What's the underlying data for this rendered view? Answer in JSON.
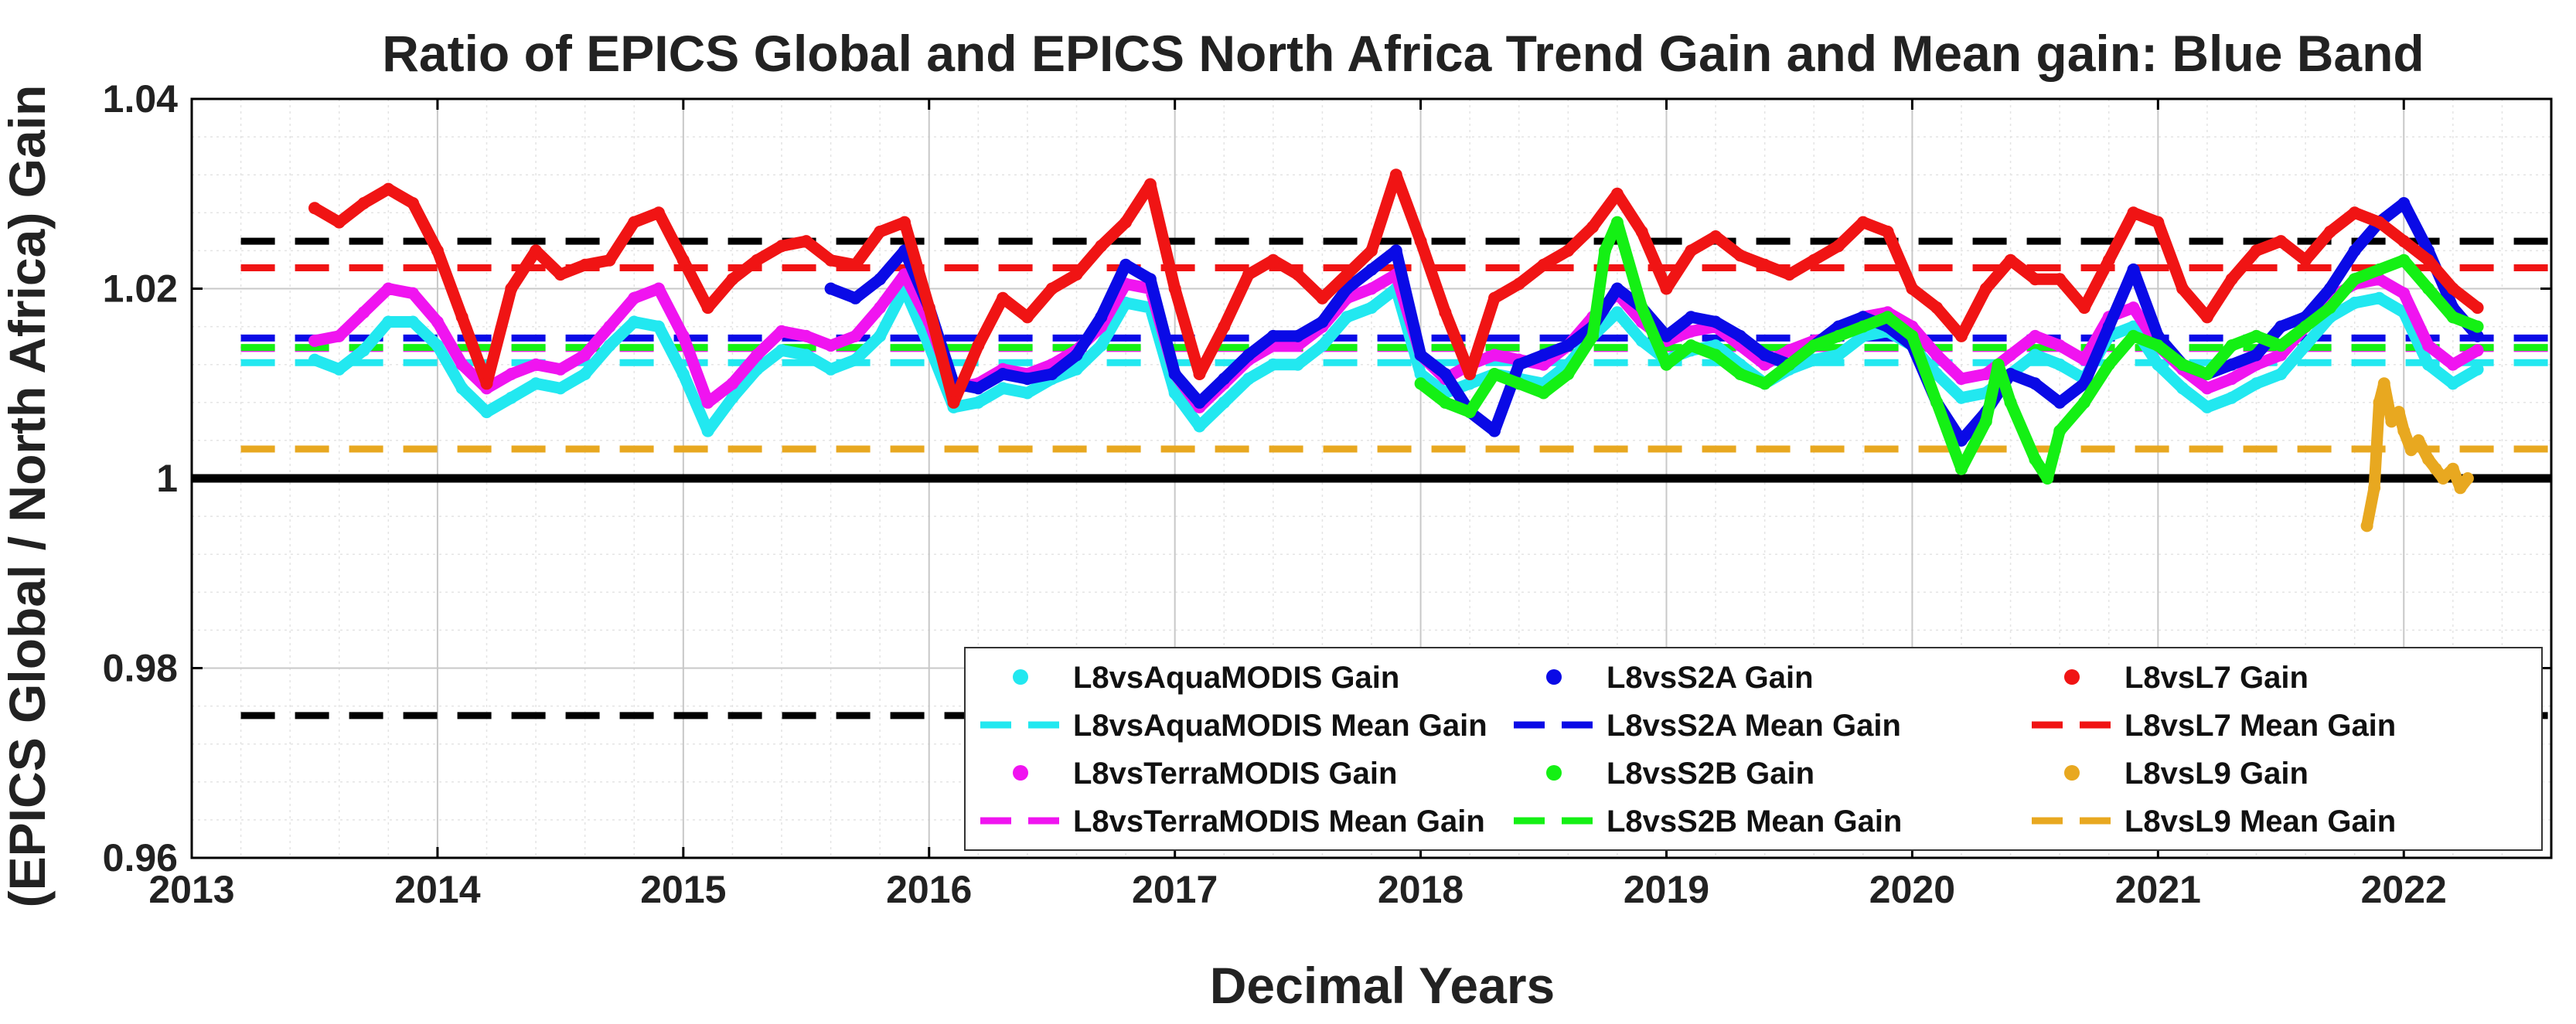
{
  "chart_data": {
    "type": "scatter",
    "title": "Ratio of EPICS Global and EPICS North Africa Trend Gain and Mean gain: Blue Band",
    "xlabel": "Decimal Years",
    "ylabel": "(EPICS Global / North Africa) Gain",
    "xlim": [
      2013,
      2022.6
    ],
    "ylim": [
      0.96,
      1.04
    ],
    "xticks": [
      2013,
      2014,
      2015,
      2016,
      2017,
      2018,
      2019,
      2020,
      2021,
      2022
    ],
    "xtick_labels": [
      "2013",
      "2014",
      "2015",
      "2016",
      "2017",
      "2018",
      "2019",
      "2020",
      "2021",
      "2022"
    ],
    "yticks": [
      0.96,
      0.98,
      1.0,
      1.02,
      1.04
    ],
    "ytick_labels": [
      "0.96",
      "0.98",
      "1",
      "1.02",
      "1.04"
    ],
    "grid": true,
    "minor_grid": true,
    "legend_position": "bottom-right",
    "reference_lines": [
      {
        "name": "unity",
        "y": 1.0,
        "color": "#000000",
        "style": "solid",
        "x_range": [
          2013,
          2022.6
        ]
      },
      {
        "name": "upper bound",
        "y": 1.025,
        "color": "#000000",
        "style": "dashed",
        "x_range": [
          2013.2,
          2022.6
        ]
      },
      {
        "name": "lower bound",
        "y": 0.975,
        "color": "#000000",
        "style": "dashed",
        "x_range": [
          2013.2,
          2022.6
        ]
      }
    ],
    "series": [
      {
        "name": "L8vsAquaMODIS Gain",
        "mean_name": "L8vsAquaMODIS Mean Gain",
        "color": "#22e8f0",
        "mean": 1.0122,
        "mean_range": [
          2013.2,
          2022.6
        ],
        "x": [
          2013.5,
          2013.6,
          2013.7,
          2013.8,
          2013.9,
          2014.0,
          2014.1,
          2014.2,
          2014.3,
          2014.4,
          2014.5,
          2014.6,
          2014.7,
          2014.8,
          2014.9,
          2015.0,
          2015.1,
          2015.2,
          2015.3,
          2015.4,
          2015.5,
          2015.6,
          2015.7,
          2015.8,
          2015.9,
          2016.0,
          2016.1,
          2016.2,
          2016.3,
          2016.4,
          2016.5,
          2016.6,
          2016.7,
          2016.8,
          2016.9,
          2017.0,
          2017.1,
          2017.2,
          2017.3,
          2017.4,
          2017.5,
          2017.6,
          2017.7,
          2017.8,
          2017.9,
          2018.0,
          2018.1,
          2018.2,
          2018.3,
          2018.4,
          2018.5,
          2018.6,
          2018.7,
          2018.8,
          2018.9,
          2019.0,
          2019.1,
          2019.2,
          2019.3,
          2019.4,
          2019.5,
          2019.6,
          2019.7,
          2019.8,
          2019.9,
          2020.0,
          2020.1,
          2020.2,
          2020.3,
          2020.4,
          2020.5,
          2020.6,
          2020.7,
          2020.8,
          2020.9,
          2021.0,
          2021.1,
          2021.2,
          2021.3,
          2021.4,
          2021.5,
          2021.6,
          2021.7,
          2021.8,
          2021.9,
          2022.0,
          2022.1,
          2022.2,
          2022.3
        ],
        "values": [
          1.0125,
          1.0115,
          1.0135,
          1.0165,
          1.0165,
          1.014,
          1.0095,
          1.007,
          1.0085,
          1.01,
          1.0095,
          1.011,
          1.014,
          1.0165,
          1.016,
          1.011,
          1.005,
          1.0085,
          1.0115,
          1.0135,
          1.013,
          1.0115,
          1.0125,
          1.015,
          1.02,
          1.014,
          1.0075,
          1.008,
          1.0095,
          1.009,
          1.0105,
          1.0115,
          1.014,
          1.0185,
          1.018,
          1.009,
          1.0055,
          1.008,
          1.0105,
          1.012,
          1.012,
          1.014,
          1.017,
          1.018,
          1.02,
          1.011,
          1.009,
          1.01,
          1.011,
          1.0105,
          1.01,
          1.012,
          1.015,
          1.0175,
          1.0145,
          1.0125,
          1.0135,
          1.014,
          1.012,
          1.01,
          1.0115,
          1.0125,
          1.013,
          1.015,
          1.0155,
          1.014,
          1.011,
          1.0085,
          1.009,
          1.011,
          1.013,
          1.012,
          1.0105,
          1.015,
          1.016,
          1.012,
          1.0095,
          1.0075,
          1.0085,
          1.01,
          1.011,
          1.014,
          1.017,
          1.0185,
          1.019,
          1.0175,
          1.012,
          1.01,
          1.0115
        ]
      },
      {
        "name": "L8vsS2A Gain",
        "mean_name": "L8vsS2A Mean Gain",
        "color": "#0a0ae6",
        "mean": 1.0148,
        "mean_range": [
          2013.2,
          2022.6
        ],
        "x": [
          2015.6,
          2015.7,
          2015.8,
          2015.9,
          2016.0,
          2016.1,
          2016.2,
          2016.3,
          2016.4,
          2016.5,
          2016.6,
          2016.7,
          2016.8,
          2016.9,
          2017.0,
          2017.1,
          2017.2,
          2017.3,
          2017.4,
          2017.5,
          2017.6,
          2017.7,
          2017.8,
          2017.9,
          2018.0,
          2018.1,
          2018.2,
          2018.3,
          2018.4,
          2018.5,
          2018.6,
          2018.7,
          2018.8,
          2018.9,
          2019.0,
          2019.1,
          2019.2,
          2019.3,
          2019.4,
          2019.5,
          2019.6,
          2019.7,
          2019.8,
          2019.9,
          2020.0,
          2020.1,
          2020.2,
          2020.3,
          2020.4,
          2020.5,
          2020.6,
          2020.7,
          2020.8,
          2020.9,
          2021.0,
          2021.1,
          2021.2,
          2021.3,
          2021.4,
          2021.5,
          2021.6,
          2021.7,
          2021.8,
          2021.9,
          2022.0,
          2022.1,
          2022.2,
          2022.3
        ],
        "values": [
          1.02,
          1.019,
          1.021,
          1.024,
          1.018,
          1.01,
          1.0095,
          1.011,
          1.0105,
          1.011,
          1.013,
          1.017,
          1.0225,
          1.021,
          1.011,
          1.008,
          1.0105,
          1.013,
          1.015,
          1.015,
          1.0165,
          1.02,
          1.022,
          1.024,
          1.013,
          1.011,
          1.007,
          1.005,
          1.012,
          1.013,
          1.014,
          1.016,
          1.02,
          1.018,
          1.015,
          1.017,
          1.0165,
          1.015,
          1.013,
          1.012,
          1.014,
          1.016,
          1.017,
          1.016,
          1.014,
          1.008,
          1.004,
          1.007,
          1.011,
          1.01,
          1.008,
          1.01,
          1.016,
          1.022,
          1.015,
          1.012,
          1.011,
          1.012,
          1.013,
          1.016,
          1.017,
          1.02,
          1.024,
          1.027,
          1.029,
          1.024,
          1.018,
          1.015
        ]
      },
      {
        "name": "L8vsL7 Gain",
        "mean_name": "L8vsL7 Mean Gain",
        "color": "#f01414",
        "mean": 1.0222,
        "mean_range": [
          2013.2,
          2022.6
        ],
        "x": [
          2013.5,
          2013.6,
          2013.7,
          2013.8,
          2013.9,
          2014.0,
          2014.1,
          2014.2,
          2014.3,
          2014.4,
          2014.5,
          2014.6,
          2014.7,
          2014.8,
          2014.9,
          2015.0,
          2015.1,
          2015.2,
          2015.3,
          2015.4,
          2015.5,
          2015.6,
          2015.7,
          2015.8,
          2015.9,
          2016.0,
          2016.1,
          2016.2,
          2016.3,
          2016.4,
          2016.5,
          2016.6,
          2016.7,
          2016.8,
          2016.9,
          2017.0,
          2017.1,
          2017.2,
          2017.3,
          2017.4,
          2017.5,
          2017.6,
          2017.7,
          2017.8,
          2017.9,
          2018.0,
          2018.1,
          2018.2,
          2018.3,
          2018.4,
          2018.5,
          2018.6,
          2018.7,
          2018.8,
          2018.9,
          2019.0,
          2019.1,
          2019.2,
          2019.3,
          2019.4,
          2019.5,
          2019.6,
          2019.7,
          2019.8,
          2019.9,
          2020.0,
          2020.1,
          2020.2,
          2020.3,
          2020.4,
          2020.5,
          2020.6,
          2020.7,
          2020.8,
          2020.9,
          2021.0,
          2021.1,
          2021.2,
          2021.3,
          2021.4,
          2021.5,
          2021.6,
          2021.7,
          2021.8,
          2021.9,
          2022.0,
          2022.1,
          2022.2,
          2022.3
        ],
        "values": [
          1.0285,
          1.027,
          1.029,
          1.0305,
          1.029,
          1.024,
          1.017,
          1.01,
          1.02,
          1.024,
          1.0215,
          1.0225,
          1.023,
          1.027,
          1.028,
          1.023,
          1.018,
          1.021,
          1.023,
          1.0245,
          1.025,
          1.023,
          1.0225,
          1.026,
          1.027,
          1.018,
          1.008,
          1.014,
          1.019,
          1.017,
          1.02,
          1.0215,
          1.0245,
          1.027,
          1.031,
          1.02,
          1.011,
          1.016,
          1.0215,
          1.023,
          1.0215,
          1.019,
          1.0215,
          1.024,
          1.032,
          1.025,
          1.0175,
          1.011,
          1.019,
          1.0205,
          1.0225,
          1.024,
          1.0265,
          1.03,
          1.026,
          1.02,
          1.024,
          1.0255,
          1.0235,
          1.0225,
          1.0215,
          1.023,
          1.0245,
          1.027,
          1.026,
          1.02,
          1.018,
          1.015,
          1.02,
          1.023,
          1.021,
          1.021,
          1.018,
          1.023,
          1.028,
          1.027,
          1.02,
          1.017,
          1.021,
          1.024,
          1.025,
          1.023,
          1.026,
          1.028,
          1.027,
          1.025,
          1.023,
          1.02,
          1.018
        ]
      },
      {
        "name": "L8vsTerraMODIS Gain",
        "mean_name": "L8vsTerraMODIS Mean Gain",
        "color": "#f014f0",
        "mean": 1.0137,
        "mean_range": [
          2013.2,
          2022.6
        ],
        "x": [
          2013.5,
          2013.6,
          2013.7,
          2013.8,
          2013.9,
          2014.0,
          2014.1,
          2014.2,
          2014.3,
          2014.4,
          2014.5,
          2014.6,
          2014.7,
          2014.8,
          2014.9,
          2015.0,
          2015.1,
          2015.2,
          2015.3,
          2015.4,
          2015.5,
          2015.6,
          2015.7,
          2015.8,
          2015.9,
          2016.0,
          2016.1,
          2016.2,
          2016.3,
          2016.4,
          2016.5,
          2016.6,
          2016.7,
          2016.8,
          2016.9,
          2017.0,
          2017.1,
          2017.2,
          2017.3,
          2017.4,
          2017.5,
          2017.6,
          2017.7,
          2017.8,
          2017.9,
          2018.0,
          2018.1,
          2018.2,
          2018.3,
          2018.4,
          2018.5,
          2018.6,
          2018.7,
          2018.8,
          2018.9,
          2019.0,
          2019.1,
          2019.2,
          2019.3,
          2019.4,
          2019.5,
          2019.6,
          2019.7,
          2019.8,
          2019.9,
          2020.0,
          2020.1,
          2020.2,
          2020.3,
          2020.4,
          2020.5,
          2020.6,
          2020.7,
          2020.8,
          2020.9,
          2021.0,
          2021.1,
          2021.2,
          2021.3,
          2021.4,
          2021.5,
          2021.6,
          2021.7,
          2021.8,
          2021.9,
          2022.0,
          2022.1,
          2022.2,
          2022.3
        ],
        "values": [
          1.0145,
          1.015,
          1.0175,
          1.02,
          1.0195,
          1.0165,
          1.012,
          1.0095,
          1.011,
          1.012,
          1.0115,
          1.013,
          1.016,
          1.019,
          1.02,
          1.015,
          1.008,
          1.01,
          1.013,
          1.0155,
          1.015,
          1.014,
          1.015,
          1.018,
          1.0215,
          1.0165,
          1.0095,
          1.01,
          1.0115,
          1.011,
          1.012,
          1.0135,
          1.016,
          1.0205,
          1.02,
          1.011,
          1.0075,
          1.01,
          1.0125,
          1.014,
          1.014,
          1.016,
          1.019,
          1.02,
          1.0215,
          1.013,
          1.0105,
          1.012,
          1.013,
          1.0125,
          1.012,
          1.014,
          1.017,
          1.0195,
          1.0165,
          1.0145,
          1.0155,
          1.016,
          1.014,
          1.012,
          1.0135,
          1.0145,
          1.015,
          1.017,
          1.0175,
          1.016,
          1.013,
          1.0105,
          1.011,
          1.013,
          1.015,
          1.014,
          1.0125,
          1.017,
          1.018,
          1.014,
          1.0115,
          1.0095,
          1.0105,
          1.012,
          1.013,
          1.016,
          1.019,
          1.0205,
          1.021,
          1.0195,
          1.014,
          1.012,
          1.0135
        ]
      },
      {
        "name": "L8vsS2B Gain",
        "mean_name": "L8vsS2B Mean Gain",
        "color": "#14f014",
        "mean": 1.0138,
        "mean_range": [
          2013.2,
          2022.6
        ],
        "x": [
          2018.0,
          2018.1,
          2018.2,
          2018.3,
          2018.4,
          2018.5,
          2018.6,
          2018.7,
          2018.75,
          2018.8,
          2018.9,
          2019.0,
          2019.1,
          2019.2,
          2019.3,
          2019.4,
          2019.5,
          2019.6,
          2019.7,
          2019.8,
          2019.9,
          2020.0,
          2020.1,
          2020.2,
          2020.3,
          2020.35,
          2020.4,
          2020.5,
          2020.55,
          2020.6,
          2020.7,
          2020.8,
          2020.9,
          2021.0,
          2021.1,
          2021.2,
          2021.3,
          2021.4,
          2021.5,
          2021.6,
          2021.7,
          2021.8,
          2021.9,
          2022.0,
          2022.1,
          2022.2,
          2022.3
        ],
        "values": [
          1.01,
          1.008,
          1.007,
          1.011,
          1.01,
          1.009,
          1.011,
          1.015,
          1.024,
          1.027,
          1.018,
          1.012,
          1.014,
          1.013,
          1.011,
          1.01,
          1.012,
          1.014,
          1.015,
          1.016,
          1.017,
          1.015,
          1.008,
          1.001,
          1.006,
          1.012,
          1.008,
          1.002,
          1.0,
          1.005,
          1.008,
          1.012,
          1.015,
          1.014,
          1.012,
          1.011,
          1.014,
          1.015,
          1.014,
          1.016,
          1.018,
          1.021,
          1.022,
          1.023,
          1.02,
          1.017,
          1.016
        ]
      },
      {
        "name": "L8vsL9 Gain",
        "mean_name": "L8vsL9 Mean Gain",
        "color": "#e8a820",
        "mean": 1.0031,
        "mean_range": [
          2013.2,
          2022.6
        ],
        "x": [
          2021.85,
          2021.88,
          2021.9,
          2021.92,
          2021.95,
          2021.98,
          2022.0,
          2022.03,
          2022.06,
          2022.1,
          2022.13,
          2022.16,
          2022.2,
          2022.23,
          2022.26
        ],
        "values": [
          0.995,
          0.999,
          1.008,
          1.01,
          1.006,
          1.007,
          1.005,
          1.003,
          1.004,
          1.002,
          1.001,
          1.0,
          1.001,
          0.999,
          1.0
        ]
      }
    ]
  }
}
